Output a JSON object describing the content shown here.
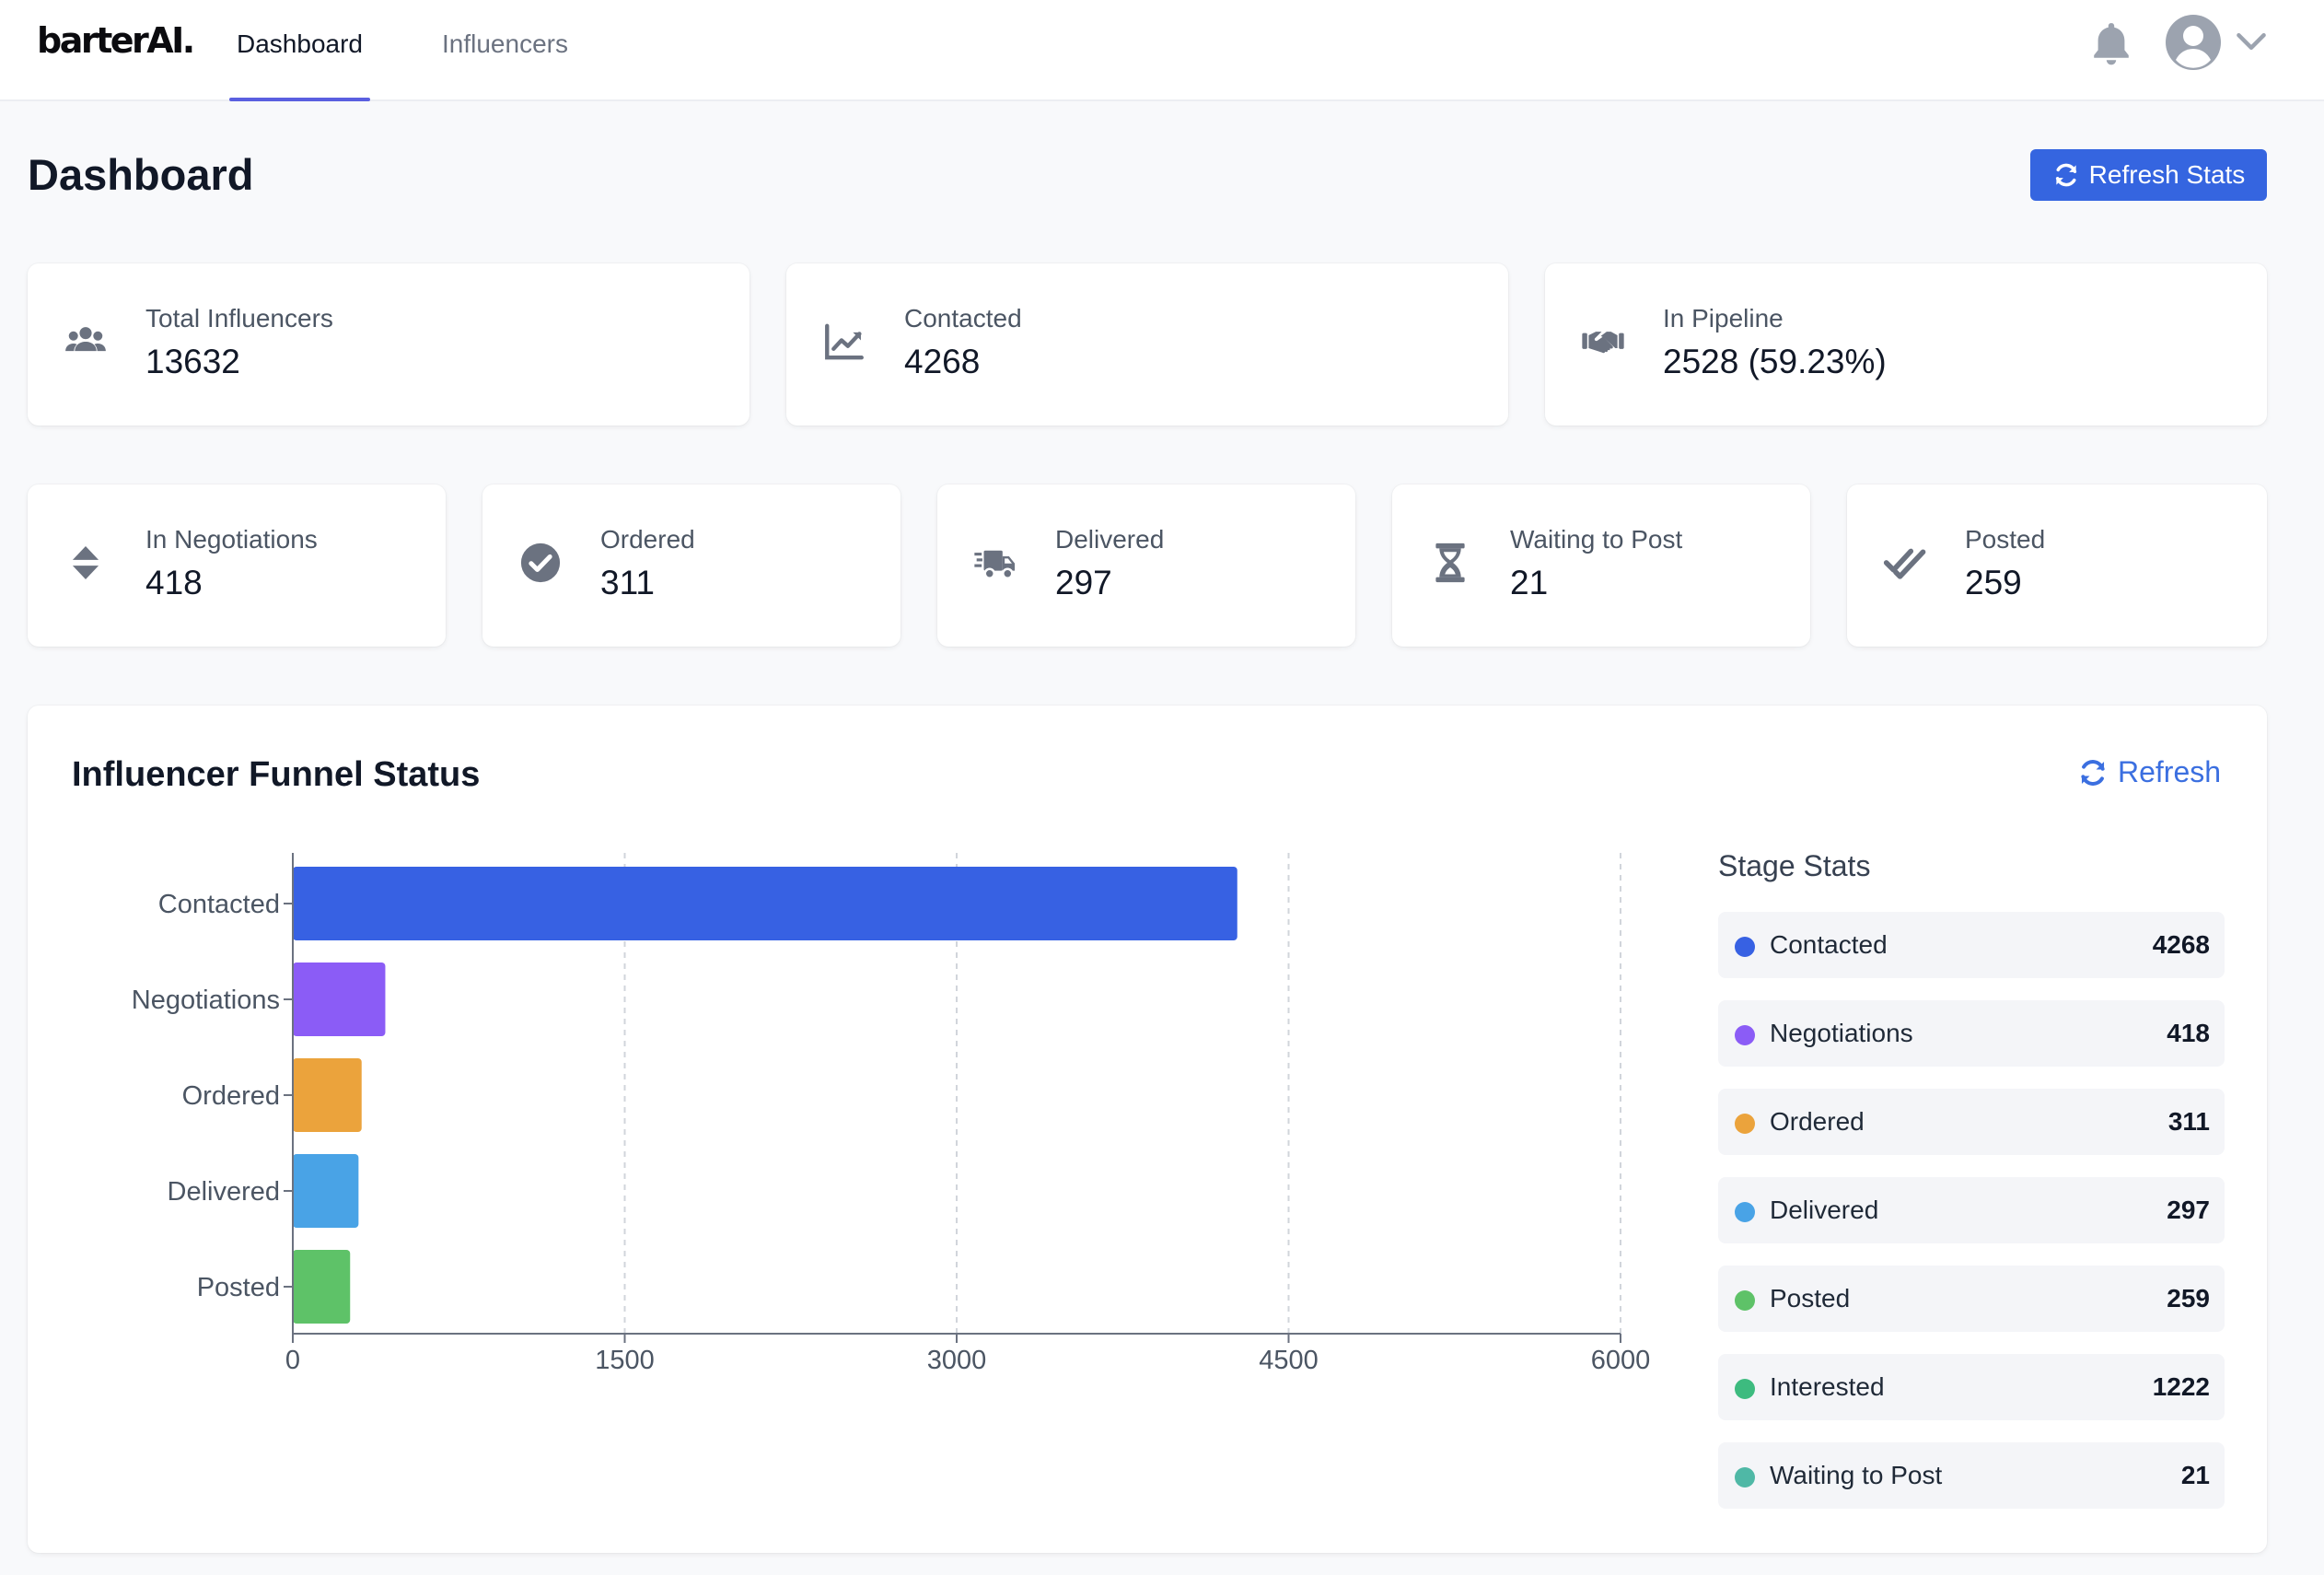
{
  "brand": {
    "logo_text": "barterAI."
  },
  "nav": {
    "tabs": [
      {
        "label": "Dashboard",
        "active": true
      },
      {
        "label": "Influencers",
        "active": false
      }
    ]
  },
  "header": {
    "title": "Dashboard",
    "refresh_label": "Refresh Stats"
  },
  "top_stats": [
    {
      "icon": "users-icon",
      "label": "Total Influencers",
      "value": "13632"
    },
    {
      "icon": "chart-line-icon",
      "label": "Contacted",
      "value": "4268"
    },
    {
      "icon": "handshake-icon",
      "label": "In Pipeline",
      "value": "2528 (59.23%)"
    }
  ],
  "stage_stats_cards": [
    {
      "icon": "sort-icon",
      "label": "In Negotiations",
      "value": "418"
    },
    {
      "icon": "check-circle-icon",
      "label": "Ordered",
      "value": "311"
    },
    {
      "icon": "truck-icon",
      "label": "Delivered",
      "value": "297"
    },
    {
      "icon": "hourglass-icon",
      "label": "Waiting to Post",
      "value": "21"
    },
    {
      "icon": "double-check-icon",
      "label": "Posted",
      "value": "259"
    }
  ],
  "funnel": {
    "title": "Influencer Funnel Status",
    "refresh_label": "Refresh",
    "stage_stats_title": "Stage Stats",
    "stage_stats": [
      {
        "name": "Contacted",
        "value": "4268",
        "color": "#3761e3"
      },
      {
        "name": "Negotiations",
        "value": "418",
        "color": "#8b5cf6"
      },
      {
        "name": "Ordered",
        "value": "311",
        "color": "#eba33c"
      },
      {
        "name": "Delivered",
        "value": "297",
        "color": "#49a3e6"
      },
      {
        "name": "Posted",
        "value": "259",
        "color": "#5ec268"
      },
      {
        "name": "Interested",
        "value": "1222",
        "color": "#3dbb7f"
      },
      {
        "name": "Waiting to Post",
        "value": "21",
        "color": "#4fb8a6"
      }
    ]
  },
  "chart_data": {
    "type": "bar",
    "orientation": "horizontal",
    "categories": [
      "Contacted",
      "Negotiations",
      "Ordered",
      "Delivered",
      "Posted"
    ],
    "values": [
      4268,
      418,
      311,
      297,
      259
    ],
    "colors": [
      "#3761e3",
      "#8b5cf6",
      "#eba33c",
      "#49a3e6",
      "#5ec268"
    ],
    "xlim": [
      0,
      6000
    ],
    "xticks": [
      0,
      1500,
      3000,
      4500,
      6000
    ],
    "grid": "vertical-dashed"
  }
}
